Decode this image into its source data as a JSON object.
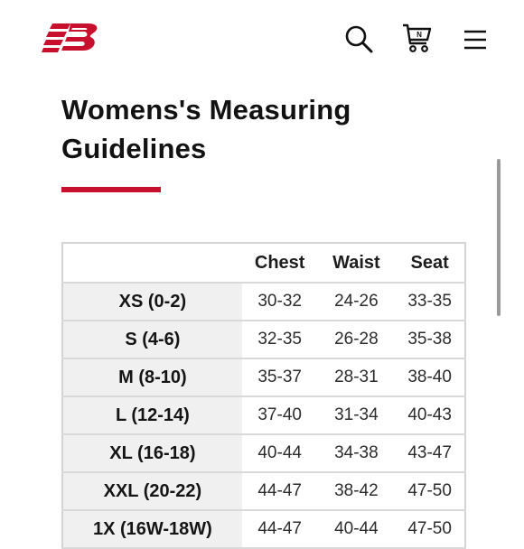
{
  "header": {
    "brand_icon": "new-balance-logo",
    "search_icon": "search-icon",
    "cart_icon": "cart-icon",
    "menu_icon": "hamburger-menu-icon",
    "brand_color": "#c8102e"
  },
  "page": {
    "title": "Womens's Measuring Guidelines"
  },
  "table": {
    "headers": [
      "Chest",
      "Waist",
      "Seat"
    ],
    "rows": [
      {
        "size": "XS (0-2)",
        "chest": "30-32",
        "waist": "24-26",
        "seat": "33-35"
      },
      {
        "size": "S (4-6)",
        "chest": "32-35",
        "waist": "26-28",
        "seat": "35-38"
      },
      {
        "size": "M (8-10)",
        "chest": "35-37",
        "waist": "28-31",
        "seat": "38-40"
      },
      {
        "size": "L (12-14)",
        "chest": "37-40",
        "waist": "31-34",
        "seat": "40-43"
      },
      {
        "size": "XL (16-18)",
        "chest": "40-44",
        "waist": "34-38",
        "seat": "43-47"
      },
      {
        "size": "XXL (20-22)",
        "chest": "44-47",
        "waist": "38-42",
        "seat": "47-50"
      },
      {
        "size": "1X (16W-18W)",
        "chest": "44-47",
        "waist": "40-44",
        "seat": "47-50"
      }
    ]
  }
}
